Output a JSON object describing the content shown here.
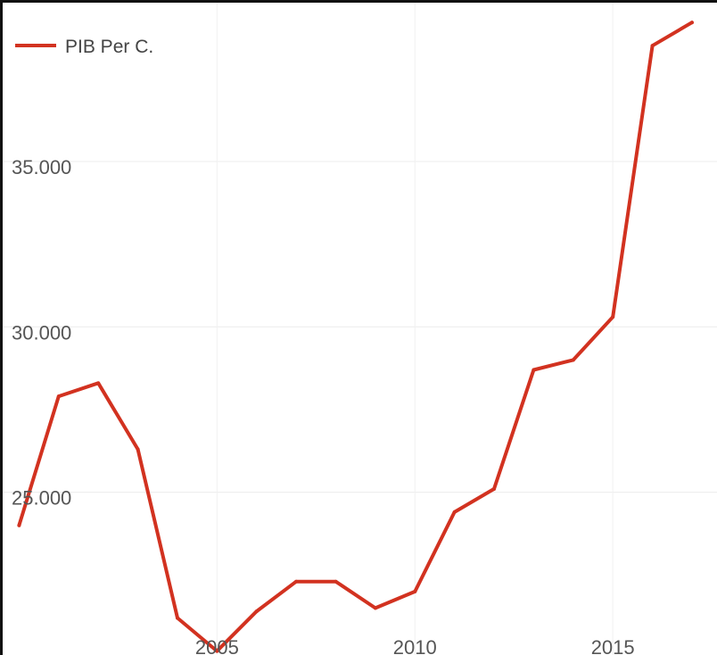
{
  "chart_data": {
    "type": "line",
    "title": "",
    "xlabel": "",
    "ylabel": "",
    "legend": {
      "position": "top-left"
    },
    "grid": true,
    "x": [
      2000,
      2001,
      2002,
      2003,
      2004,
      2005,
      2006,
      2007,
      2008,
      2009,
      2010,
      2011,
      2012,
      2013,
      2014,
      2015,
      2016,
      2017
    ],
    "series": [
      {
        "name": "PIB Per C.",
        "color": "#d23220",
        "values": [
          24000,
          27900,
          28300,
          26300,
          21200,
          20200,
          21400,
          22300,
          22300,
          21500,
          22000,
          24400,
          25100,
          28700,
          29000,
          30300,
          38500,
          39200
        ]
      }
    ],
    "xlim": [
      1999.9,
      2017.7
    ],
    "ylim": [
      20000,
      39800
    ],
    "x_ticks": [
      {
        "value": 2005,
        "label": "2005"
      },
      {
        "value": 2010,
        "label": "2010"
      },
      {
        "value": 2015,
        "label": "2015"
      }
    ],
    "y_ticks": [
      {
        "value": 25000,
        "label": "25.000"
      },
      {
        "value": 30000,
        "label": "30.000"
      },
      {
        "value": 35000,
        "label": "35.000"
      }
    ]
  }
}
